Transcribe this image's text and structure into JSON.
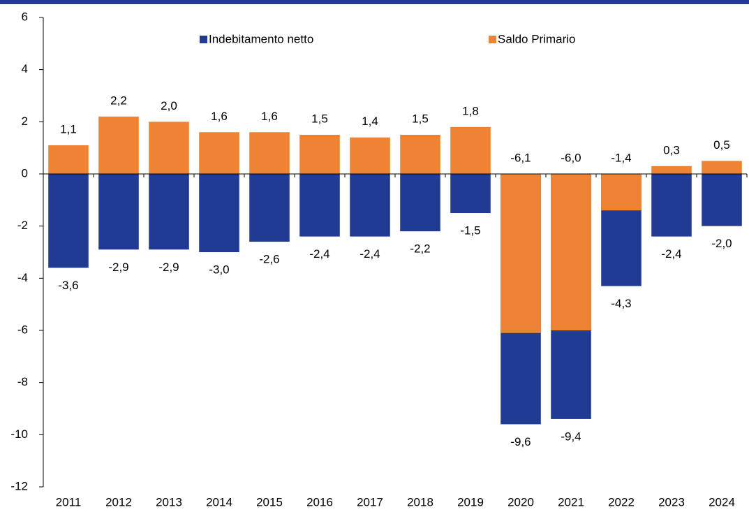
{
  "chart_data": {
    "type": "bar",
    "categories": [
      "2011",
      "2012",
      "2013",
      "2014",
      "2015",
      "2016",
      "2017",
      "2018",
      "2019",
      "2020",
      "2021",
      "2022",
      "2023",
      "2024"
    ],
    "series": [
      {
        "name": "Indebitamento netto",
        "color": "#213b95",
        "values": [
          -3.6,
          -2.9,
          -2.9,
          -3.0,
          -2.6,
          -2.4,
          -2.4,
          -2.2,
          -1.5,
          -9.6,
          -9.4,
          -4.3,
          -2.4,
          -2.0
        ],
        "value_labels": [
          "-3,6",
          "-2,9",
          "-2,9",
          "-3,0",
          "-2,6",
          "-2,4",
          "-2,4",
          "-2,2",
          "-1,5",
          "-9,6",
          "-9,4",
          "-4,3",
          "-2,4",
          "-2,0"
        ]
      },
      {
        "name": "Saldo Primario",
        "color": "#ee8433",
        "values": [
          1.1,
          2.2,
          2.0,
          1.6,
          1.6,
          1.5,
          1.4,
          1.5,
          1.8,
          -6.1,
          -6.0,
          -1.4,
          0.3,
          0.5
        ],
        "value_labels": [
          "1,1",
          "2,2",
          "2,0",
          "1,6",
          "1,6",
          "1,5",
          "1,4",
          "1,5",
          "1,8",
          "-6,1",
          "-6,0",
          "-1,4",
          "0,3",
          "0,5"
        ]
      }
    ],
    "ylim": [
      -12,
      6
    ],
    "yticks": [
      -12,
      -10,
      -8,
      -6,
      -4,
      -2,
      0,
      2,
      4,
      6
    ],
    "legend": "top"
  }
}
